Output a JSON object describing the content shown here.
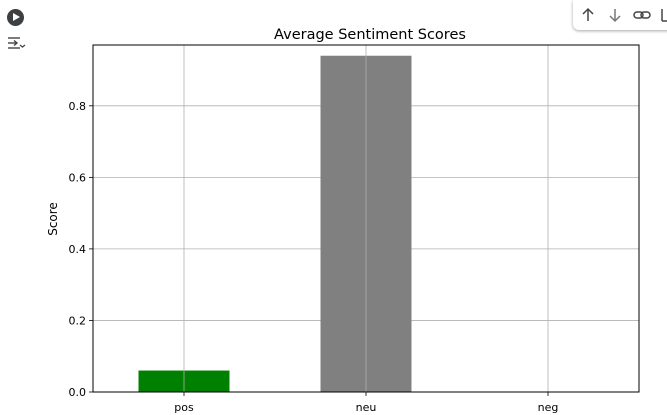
{
  "icons": {
    "run": "play-icon",
    "output": "output-toggle-icon",
    "move_up": "arrow-up-icon",
    "move_down": "arrow-down-icon",
    "link": "link-icon",
    "more": "more-icon"
  },
  "chart_data": {
    "type": "bar",
    "title": "Average Sentiment Scores",
    "xlabel": "",
    "ylabel": "Score",
    "categories": [
      "pos",
      "neu",
      "neg"
    ],
    "values": [
      0.06,
      0.94,
      0.0
    ],
    "colors": [
      "#008000",
      "#808080",
      "#ff0000"
    ],
    "ylim": [
      0,
      0.97
    ],
    "yticks": [
      0.0,
      0.2,
      0.4,
      0.6,
      0.8
    ],
    "ytick_labels": [
      "0.0",
      "0.2",
      "0.4",
      "0.6",
      "0.8"
    ],
    "grid": true,
    "legend": "none"
  }
}
